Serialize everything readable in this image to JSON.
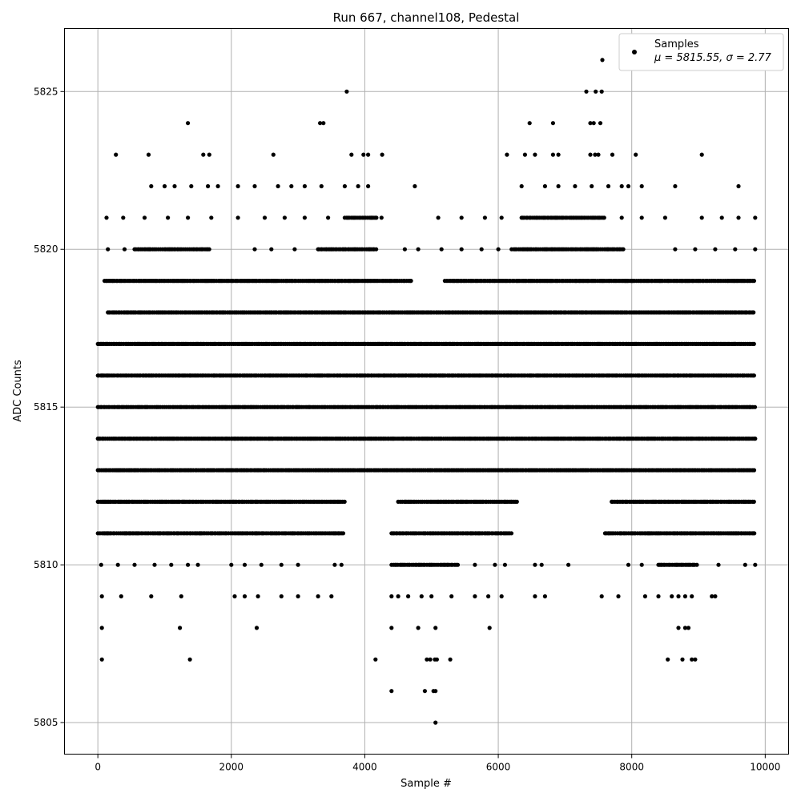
{
  "chart_data": {
    "type": "scatter",
    "title": "Run 667, channel108, Pedestal",
    "xlabel": "Sample #",
    "ylabel": "ADC Counts",
    "xlim": [
      -500,
      10350
    ],
    "ylim": [
      5804,
      5827
    ],
    "xticks": [
      0,
      2000,
      4000,
      6000,
      8000,
      10000
    ],
    "yticks": [
      5805,
      5810,
      5815,
      5820,
      5825
    ],
    "grid": true,
    "marker_color": "#000000",
    "legend": {
      "placement": "top-right",
      "entries": [
        {
          "line1": "Samples",
          "line2": "μ = 5815.55, σ = 2.77"
        }
      ]
    },
    "series": [
      {
        "name": "Samples",
        "x_range": [
          0,
          9850
        ],
        "dense_levels": [
          {
            "y": 5817,
            "x": [
              [
                0,
                9850
              ]
            ]
          },
          {
            "y": 5816,
            "x": [
              [
                0,
                9850
              ]
            ]
          },
          {
            "y": 5815,
            "x": [
              [
                0,
                9850
              ]
            ]
          },
          {
            "y": 5814,
            "x": [
              [
                0,
                9850
              ]
            ]
          },
          {
            "y": 5818,
            "x": [
              [
                150,
                9850
              ]
            ]
          },
          {
            "y": 5813,
            "x": [
              [
                0,
                9850
              ]
            ]
          },
          {
            "y": 5819,
            "x": [
              [
                100,
                4700
              ],
              [
                5200,
                9850
              ]
            ]
          },
          {
            "y": 5811,
            "x": [
              [
                0,
                3700
              ],
              [
                4400,
                6200
              ],
              [
                7600,
                9850
              ]
            ]
          },
          {
            "y": 5812,
            "x": [
              [
                0,
                3700
              ],
              [
                4500,
                6300
              ],
              [
                7700,
                9850
              ]
            ]
          },
          {
            "y": 5820,
            "x": [
              [
                550,
                1700
              ],
              [
                3300,
                4200
              ],
              [
                6200,
                7900
              ]
            ]
          },
          {
            "y": 5821,
            "x": [
              [
                3700,
                4200
              ],
              [
                6350,
                7600
              ]
            ]
          },
          {
            "y": 5810,
            "x": [
              [
                4400,
                5400
              ],
              [
                8400,
                9000
              ]
            ]
          }
        ],
        "sparse_points": [
          [
            270,
            5823
          ],
          [
            760,
            5823
          ],
          [
            1580,
            5823
          ],
          [
            1670,
            5823
          ],
          [
            2630,
            5823
          ],
          [
            3800,
            5823
          ],
          [
            3980,
            5823
          ],
          [
            4050,
            5823
          ],
          [
            4260,
            5823
          ],
          [
            6130,
            5823
          ],
          [
            6400,
            5823
          ],
          [
            6550,
            5823
          ],
          [
            6820,
            5823
          ],
          [
            6900,
            5823
          ],
          [
            7380,
            5823
          ],
          [
            7450,
            5823
          ],
          [
            7500,
            5823
          ],
          [
            7710,
            5823
          ],
          [
            8060,
            5823
          ],
          [
            9050,
            5823
          ],
          [
            1350,
            5824
          ],
          [
            3330,
            5824
          ],
          [
            3380,
            5824
          ],
          [
            6470,
            5824
          ],
          [
            6820,
            5824
          ],
          [
            7380,
            5824
          ],
          [
            7430,
            5824
          ],
          [
            7530,
            5824
          ],
          [
            3730,
            5825
          ],
          [
            7320,
            5825
          ],
          [
            7460,
            5825
          ],
          [
            7550,
            5825
          ],
          [
            7560,
            5826
          ],
          [
            800,
            5822
          ],
          [
            1000,
            5822
          ],
          [
            1150,
            5822
          ],
          [
            1400,
            5822
          ],
          [
            1650,
            5822
          ],
          [
            1800,
            5822
          ],
          [
            2100,
            5822
          ],
          [
            2350,
            5822
          ],
          [
            2700,
            5822
          ],
          [
            2900,
            5822
          ],
          [
            3100,
            5822
          ],
          [
            3350,
            5822
          ],
          [
            3700,
            5822
          ],
          [
            3900,
            5822
          ],
          [
            4050,
            5822
          ],
          [
            4750,
            5822
          ],
          [
            6350,
            5822
          ],
          [
            6700,
            5822
          ],
          [
            6900,
            5822
          ],
          [
            7150,
            5822
          ],
          [
            7400,
            5822
          ],
          [
            7650,
            5822
          ],
          [
            7850,
            5822
          ],
          [
            7950,
            5822
          ],
          [
            8150,
            5822
          ],
          [
            8650,
            5822
          ],
          [
            9600,
            5822
          ],
          [
            130,
            5821
          ],
          [
            380,
            5821
          ],
          [
            700,
            5821
          ],
          [
            1050,
            5821
          ],
          [
            1350,
            5821
          ],
          [
            1700,
            5821
          ],
          [
            2100,
            5821
          ],
          [
            2500,
            5821
          ],
          [
            2800,
            5821
          ],
          [
            3100,
            5821
          ],
          [
            3450,
            5821
          ],
          [
            4250,
            5821
          ],
          [
            5100,
            5821
          ],
          [
            5450,
            5821
          ],
          [
            5800,
            5821
          ],
          [
            6050,
            5821
          ],
          [
            7850,
            5821
          ],
          [
            8150,
            5821
          ],
          [
            8500,
            5821
          ],
          [
            9050,
            5821
          ],
          [
            9350,
            5821
          ],
          [
            9600,
            5821
          ],
          [
            9850,
            5821
          ],
          [
            150,
            5820
          ],
          [
            400,
            5820
          ],
          [
            2350,
            5820
          ],
          [
            2600,
            5820
          ],
          [
            2950,
            5820
          ],
          [
            4600,
            5820
          ],
          [
            4800,
            5820
          ],
          [
            5150,
            5820
          ],
          [
            5450,
            5820
          ],
          [
            5750,
            5820
          ],
          [
            6000,
            5820
          ],
          [
            8650,
            5820
          ],
          [
            8950,
            5820
          ],
          [
            9250,
            5820
          ],
          [
            9550,
            5820
          ],
          [
            9850,
            5820
          ],
          [
            50,
            5810
          ],
          [
            300,
            5810
          ],
          [
            550,
            5810
          ],
          [
            850,
            5810
          ],
          [
            1100,
            5810
          ],
          [
            1350,
            5810
          ],
          [
            1500,
            5810
          ],
          [
            2000,
            5810
          ],
          [
            2200,
            5810
          ],
          [
            2450,
            5810
          ],
          [
            2750,
            5810
          ],
          [
            3000,
            5810
          ],
          [
            3550,
            5810
          ],
          [
            3650,
            5810
          ],
          [
            5650,
            5810
          ],
          [
            5950,
            5810
          ],
          [
            6100,
            5810
          ],
          [
            6550,
            5810
          ],
          [
            6650,
            5810
          ],
          [
            7050,
            5810
          ],
          [
            7950,
            5810
          ],
          [
            8150,
            5810
          ],
          [
            9300,
            5810
          ],
          [
            9700,
            5810
          ],
          [
            9850,
            5810
          ],
          [
            60,
            5809
          ],
          [
            350,
            5809
          ],
          [
            800,
            5809
          ],
          [
            1250,
            5809
          ],
          [
            2050,
            5809
          ],
          [
            2200,
            5809
          ],
          [
            2400,
            5809
          ],
          [
            2750,
            5809
          ],
          [
            3000,
            5809
          ],
          [
            3300,
            5809
          ],
          [
            3500,
            5809
          ],
          [
            4400,
            5809
          ],
          [
            4500,
            5809
          ],
          [
            4650,
            5809
          ],
          [
            4850,
            5809
          ],
          [
            5000,
            5809
          ],
          [
            5300,
            5809
          ],
          [
            5650,
            5809
          ],
          [
            5850,
            5809
          ],
          [
            6050,
            5809
          ],
          [
            6550,
            5809
          ],
          [
            6700,
            5809
          ],
          [
            7550,
            5809
          ],
          [
            7800,
            5809
          ],
          [
            8200,
            5809
          ],
          [
            8400,
            5809
          ],
          [
            8600,
            5809
          ],
          [
            8700,
            5809
          ],
          [
            8800,
            5809
          ],
          [
            8900,
            5809
          ],
          [
            9200,
            5809
          ],
          [
            9250,
            5809
          ],
          [
            60,
            5808
          ],
          [
            1230,
            5808
          ],
          [
            2380,
            5808
          ],
          [
            4400,
            5808
          ],
          [
            4800,
            5808
          ],
          [
            5060,
            5808
          ],
          [
            5870,
            5808
          ],
          [
            8700,
            5808
          ],
          [
            8800,
            5808
          ],
          [
            8850,
            5808
          ],
          [
            60,
            5807
          ],
          [
            1380,
            5807
          ],
          [
            4160,
            5807
          ],
          [
            4930,
            5807
          ],
          [
            4980,
            5807
          ],
          [
            5050,
            5807
          ],
          [
            5080,
            5807
          ],
          [
            5280,
            5807
          ],
          [
            8540,
            5807
          ],
          [
            8760,
            5807
          ],
          [
            8900,
            5807
          ],
          [
            8950,
            5807
          ],
          [
            4400,
            5806
          ],
          [
            4900,
            5806
          ],
          [
            5030,
            5806
          ],
          [
            5060,
            5806
          ],
          [
            5060,
            5805
          ]
        ]
      }
    ]
  }
}
